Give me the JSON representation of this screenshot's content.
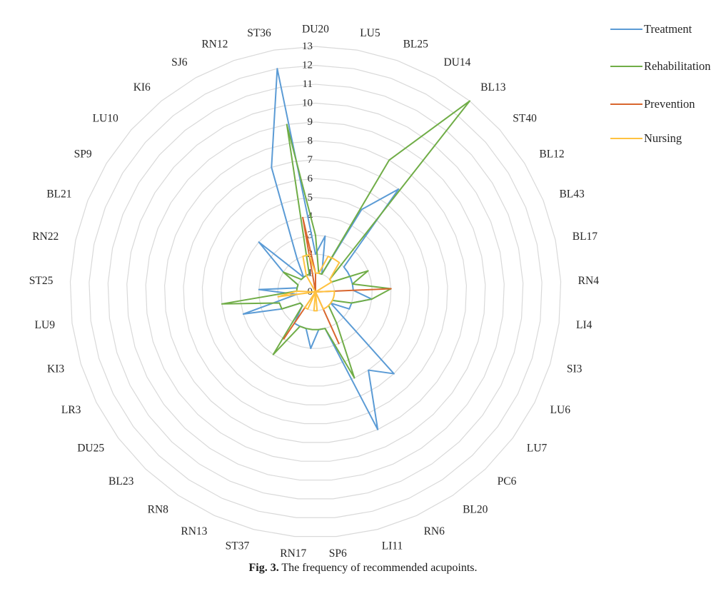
{
  "figure": {
    "caption_label": "Fig. 3.",
    "caption_text": "The frequency of recommended acupoints."
  },
  "chart_data": {
    "type": "radar",
    "title": "The frequency of recommended acupoints",
    "categories": [
      "DU20",
      "LU5",
      "BL25",
      "DU14",
      "BL13",
      "ST40",
      "BL12",
      "BL43",
      "BL17",
      "RN4",
      "LI4",
      "SI3",
      "LU6",
      "LU7",
      "PC6",
      "BL20",
      "RN6",
      "LI11",
      "SP6",
      "RN17",
      "ST37",
      "RN13",
      "RN8",
      "BL23",
      "DU25",
      "LR3",
      "KI3",
      "LU9",
      "ST25",
      "RN22",
      "BL21",
      "SP9",
      "LU10",
      "KI6",
      "SJ6",
      "RN12",
      "ST36"
    ],
    "series": [
      {
        "name": "Treatment",
        "color": "#5B9BD5",
        "values": [
          2,
          3,
          1,
          5,
          7,
          2,
          2,
          2,
          2,
          2,
          3,
          2,
          2,
          1,
          6,
          5,
          8,
          2,
          2,
          3,
          2,
          2,
          2,
          1,
          1,
          2,
          4,
          1,
          3,
          1,
          1,
          2,
          4,
          1,
          2,
          7,
          12
        ]
      },
      {
        "name": "Rehabilitation",
        "color": "#70AD47",
        "values": [
          3,
          1,
          1,
          8,
          13,
          1,
          1,
          3,
          2,
          4,
          3,
          2,
          1,
          1,
          1,
          2,
          5,
          2,
          2,
          2,
          2,
          2,
          4,
          1,
          1,
          2,
          2,
          5,
          1,
          1,
          1,
          2,
          1,
          1,
          1,
          1,
          9
        ]
      },
      {
        "name": "Prevention",
        "color": "#D9662E",
        "values": [
          1,
          0,
          0,
          0,
          0,
          0,
          0,
          0,
          0,
          4,
          0,
          0,
          0,
          0,
          0,
          0,
          3,
          0,
          0,
          0,
          0,
          0,
          3,
          0,
          0,
          0,
          0,
          0,
          0,
          0,
          0,
          0,
          0,
          0,
          0,
          0,
          4
        ]
      },
      {
        "name": "Nursing",
        "color": "#FFC240",
        "values": [
          1,
          1,
          2,
          2,
          2,
          1,
          1,
          0,
          0,
          1,
          1,
          1,
          1,
          1,
          1,
          1,
          1,
          0,
          1,
          1,
          0,
          1,
          1,
          0,
          0,
          0,
          0,
          2,
          1,
          0,
          0,
          0,
          0,
          0,
          1,
          2,
          2
        ]
      }
    ],
    "radial_axis": {
      "min": 0,
      "max": 13,
      "tick_step": 1,
      "tick_labels": [
        "0",
        "1",
        "2",
        "3",
        "4",
        "5",
        "6",
        "7",
        "8",
        "9",
        "10",
        "11",
        "12",
        "13"
      ]
    },
    "grid": true,
    "grid_color": "#D9D9D9",
    "legend_position": "top-right"
  }
}
